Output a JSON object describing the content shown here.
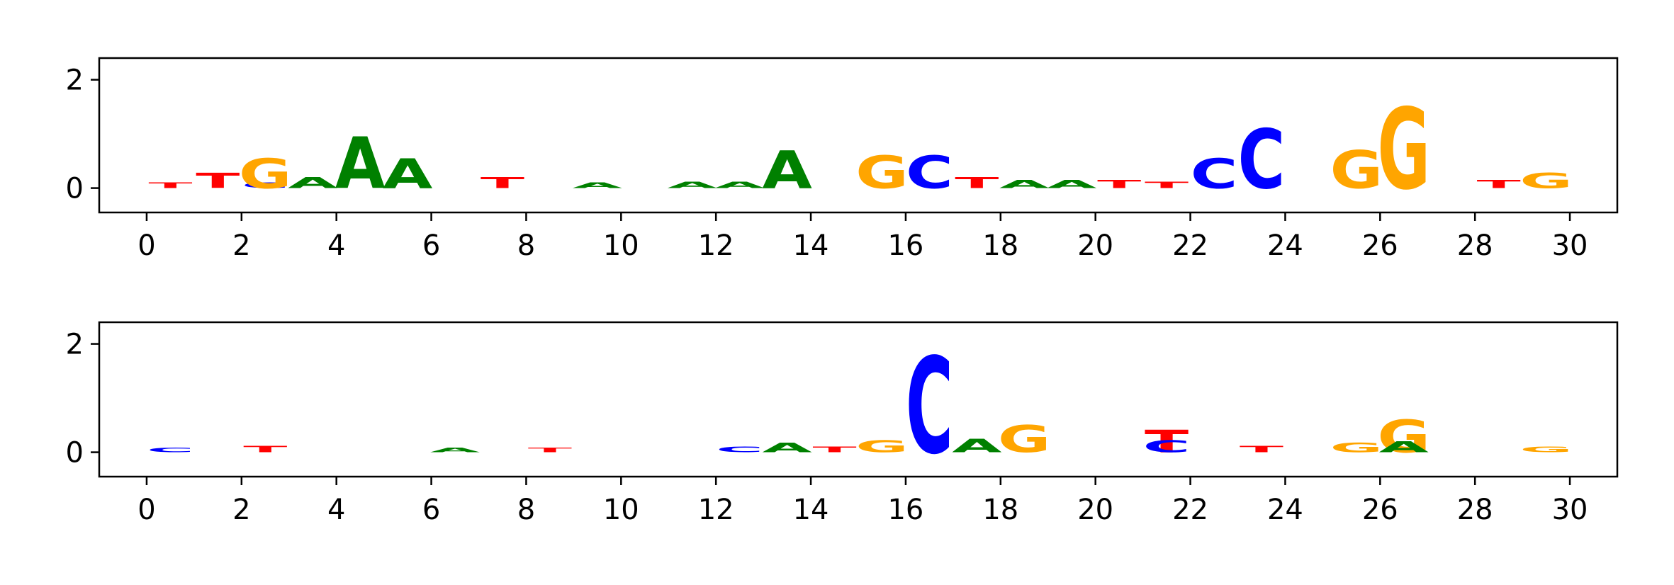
{
  "chart_data": [
    {
      "type": "sequence-logo",
      "title": "",
      "xlabel": "",
      "ylabel": "",
      "xlim": [
        -1,
        31
      ],
      "ylim": [
        -0.45,
        2.4
      ],
      "xticks": [
        0,
        2,
        4,
        6,
        8,
        10,
        12,
        14,
        16,
        18,
        20,
        22,
        24,
        26,
        28,
        30
      ],
      "xtick_labels": [
        "0",
        "2",
        "4",
        "6",
        "8",
        "10",
        "12",
        "14",
        "16",
        "18",
        "20",
        "22",
        "24",
        "26",
        "28",
        "30"
      ],
      "yticks": [
        0,
        2
      ],
      "ytick_labels": [
        "0",
        "2"
      ],
      "grid": false,
      "letters": [
        {
          "pos": 2.5,
          "letter": "G",
          "height": 0.55
        },
        {
          "pos": 4.5,
          "letter": "A",
          "height": 0.95
        },
        {
          "pos": 5.5,
          "letter": "A",
          "height": 0.55
        },
        {
          "pos": 13.5,
          "letter": "A",
          "height": 0.7
        },
        {
          "pos": 15.5,
          "letter": "G",
          "height": 0.6
        },
        {
          "pos": 16.5,
          "letter": "C",
          "height": 0.6
        },
        {
          "pos": 22.5,
          "letter": "C",
          "height": 0.55
        },
        {
          "pos": 23.5,
          "letter": "C",
          "height": 1.1
        },
        {
          "pos": 25.5,
          "letter": "G",
          "height": 0.7
        },
        {
          "pos": 26.5,
          "letter": "G",
          "height": 1.5
        },
        {
          "pos": 29.5,
          "letter": "G",
          "height": 0.28
        }
      ],
      "small_letters": [
        {
          "pos": 0.5,
          "letter": "T",
          "height": 0.1
        },
        {
          "pos": 1.5,
          "letter": "T",
          "height": 0.28
        },
        {
          "pos": 2.5,
          "letter": "C",
          "height": 0.1
        },
        {
          "pos": 3.5,
          "letter": "A",
          "height": 0.2
        },
        {
          "pos": 7.5,
          "letter": "T",
          "height": 0.2
        },
        {
          "pos": 9.5,
          "letter": "A",
          "height": 0.1
        },
        {
          "pos": 11.5,
          "letter": "A",
          "height": 0.12
        },
        {
          "pos": 12.5,
          "letter": "A",
          "height": 0.12
        },
        {
          "pos": 17.5,
          "letter": "T",
          "height": 0.2
        },
        {
          "pos": 18.5,
          "letter": "A",
          "height": 0.15
        },
        {
          "pos": 19.5,
          "letter": "A",
          "height": 0.15
        },
        {
          "pos": 20.5,
          "letter": "T",
          "height": 0.15
        },
        {
          "pos": 21.5,
          "letter": "T",
          "height": 0.12
        },
        {
          "pos": 28.5,
          "letter": "T",
          "height": 0.15
        }
      ]
    },
    {
      "type": "sequence-logo",
      "title": "",
      "xlabel": "",
      "ylabel": "",
      "xlim": [
        -1,
        31
      ],
      "ylim": [
        -0.45,
        2.4
      ],
      "xticks": [
        0,
        2,
        4,
        6,
        8,
        10,
        12,
        14,
        16,
        18,
        20,
        22,
        24,
        26,
        28,
        30
      ],
      "xtick_labels": [
        "0",
        "2",
        "4",
        "6",
        "8",
        "10",
        "12",
        "14",
        "16",
        "18",
        "20",
        "22",
        "24",
        "26",
        "28",
        "30"
      ],
      "yticks": [
        0,
        2
      ],
      "ytick_labels": [
        "0",
        "2"
      ],
      "grid": false,
      "letters": [
        {
          "pos": 15.5,
          "letter": "G",
          "height": 0.22
        },
        {
          "pos": 16.5,
          "letter": "C",
          "height": 1.78
        },
        {
          "pos": 17.5,
          "letter": "A",
          "height": 0.25
        },
        {
          "pos": 18.5,
          "letter": "G",
          "height": 0.5
        },
        {
          "pos": 21.5,
          "letter": "T",
          "height": 0.42
        },
        {
          "pos": 21.5,
          "letter": "C",
          "height": 0.22
        },
        {
          "pos": 26.5,
          "letter": "G",
          "height": 0.6
        },
        {
          "pos": 26.5,
          "letter": "A",
          "height": 0.2
        },
        {
          "pos": 25.5,
          "letter": "G",
          "height": 0.18
        }
      ],
      "small_letters": [
        {
          "pos": 0.5,
          "letter": "C",
          "height": 0.08
        },
        {
          "pos": 2.5,
          "letter": "T",
          "height": 0.12
        },
        {
          "pos": 6.5,
          "letter": "A",
          "height": 0.08
        },
        {
          "pos": 8.5,
          "letter": "T",
          "height": 0.08
        },
        {
          "pos": 12.5,
          "letter": "C",
          "height": 0.1
        },
        {
          "pos": 13.5,
          "letter": "A",
          "height": 0.18
        },
        {
          "pos": 14.5,
          "letter": "T",
          "height": 0.1
        },
        {
          "pos": 23.5,
          "letter": "T",
          "height": 0.12
        },
        {
          "pos": 29.5,
          "letter": "G",
          "height": 0.1
        }
      ]
    }
  ],
  "colors": {
    "A": "#008000",
    "C": "#0000ff",
    "G": "#ffa500",
    "T": "#ff0000"
  }
}
